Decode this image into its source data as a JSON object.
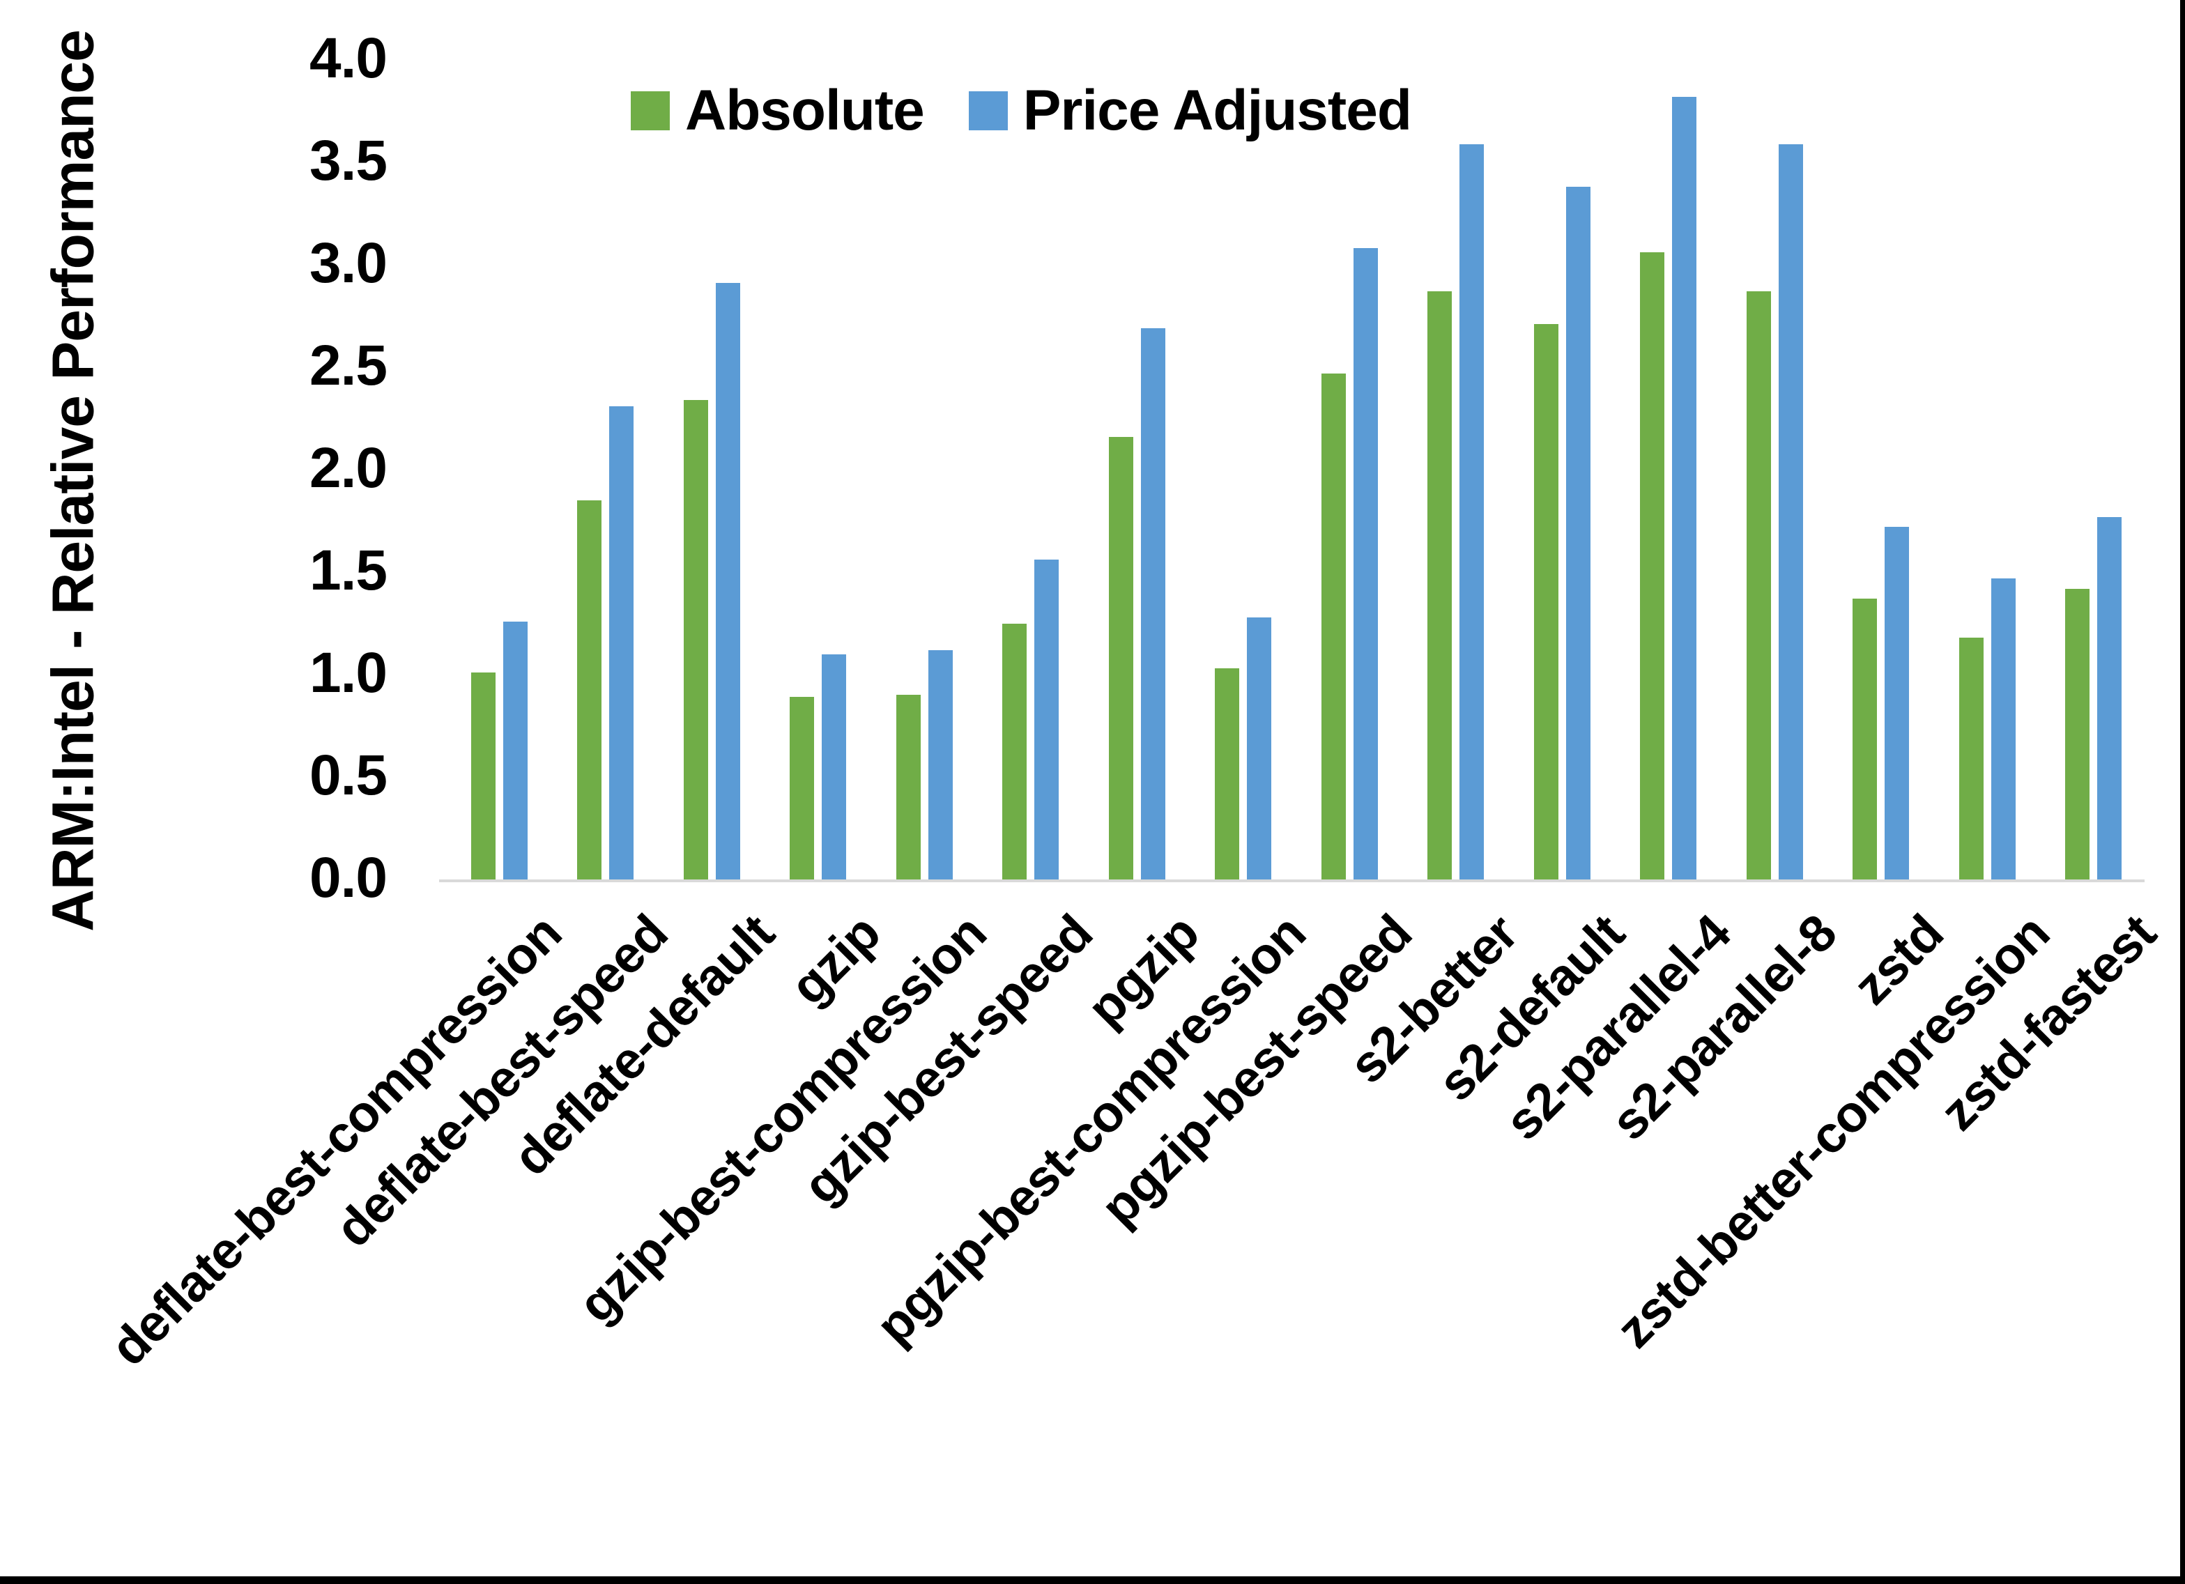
{
  "page": {
    "background": "#FFFFFF",
    "frame_border_color": "#000000"
  },
  "legend": {
    "items": [
      {
        "label": "Absolute",
        "color": "#70AD47"
      },
      {
        "label": "Price Adjusted",
        "color": "#5B9BD5"
      }
    ]
  },
  "y_axis": {
    "title": "ARM:Intel - Relative Performance",
    "tick_labels": [
      "0.0",
      "0.5",
      "1.0",
      "1.5",
      "2.0",
      "2.5",
      "3.0",
      "3.5",
      "4.0"
    ]
  },
  "chart_data": {
    "type": "bar",
    "title": "",
    "xlabel": "",
    "ylabel": "ARM:Intel - Relative Performance",
    "ylim": [
      0.0,
      4.0
    ],
    "ytick_step": 0.5,
    "grid": false,
    "legend_position": "top-center",
    "axis_line_color": "#D9D9D9",
    "categories": [
      "deflate-best-compression",
      "deflate-best-speed",
      "deflate-default",
      "gzip",
      "gzip-best-compression",
      "gzip-best-speed",
      "pgzip",
      "pgzip-best-compression",
      "pgzip-best-speed",
      "s2-better",
      "s2-default",
      "s2-parallel-4",
      "s2-parallel-8",
      "zstd",
      "zstd-better-compression",
      "zstd-fastest"
    ],
    "series": [
      {
        "name": "Absolute",
        "color": "#70AD47",
        "values": [
          1.01,
          1.85,
          2.34,
          0.89,
          0.9,
          1.25,
          2.16,
          1.03,
          2.47,
          2.87,
          2.71,
          3.06,
          2.87,
          1.37,
          1.18,
          1.42
        ]
      },
      {
        "name": "Price Adjusted",
        "color": "#5B9BD5",
        "values": [
          1.26,
          2.31,
          2.91,
          1.1,
          1.12,
          1.56,
          2.69,
          1.28,
          3.08,
          3.59,
          3.38,
          3.82,
          3.59,
          1.72,
          1.47,
          1.77
        ]
      }
    ]
  }
}
